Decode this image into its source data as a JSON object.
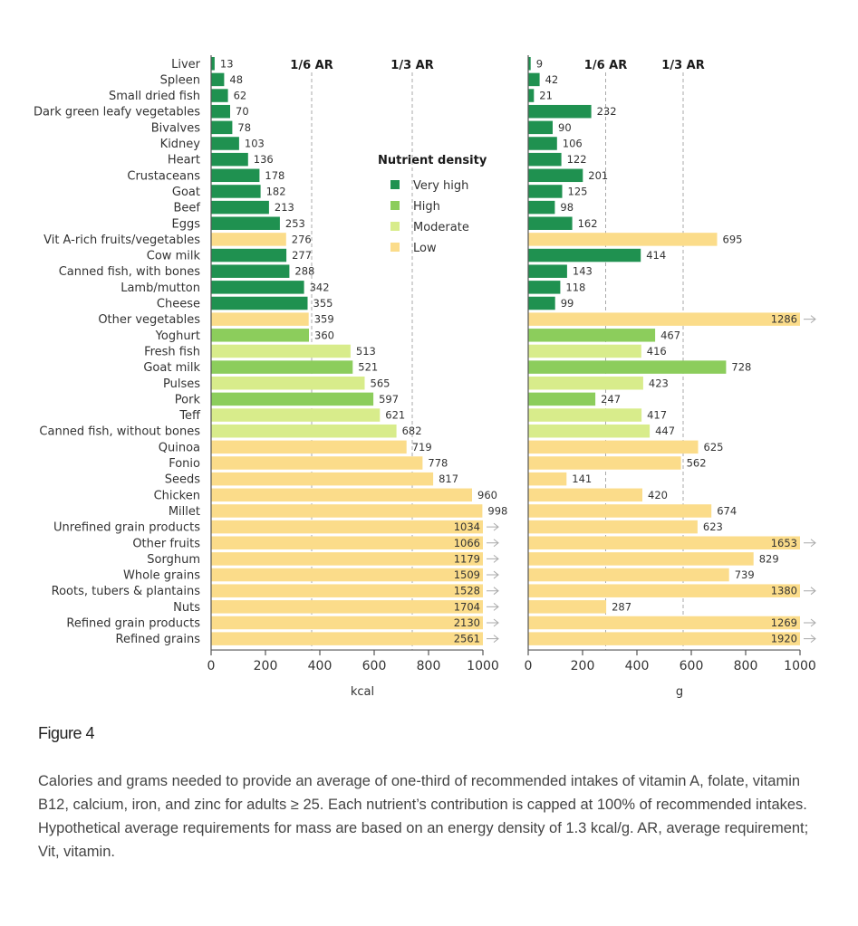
{
  "figure": {
    "title": "Figure 4",
    "caption": "Calories and grams needed to provide an average of one-third of recommended intakes of vitamin A, folate, vitamin B12, calcium, iron, and zinc for adults ≥ 25. Each nutrient’s contribution is capped at 100% of recommended intakes. Hypothetical average requirements for mass are based on an energy density of 1.3 kcal/g. AR, average requirement; Vit, vitamin."
  },
  "colors": {
    "Very high": "#1f9150",
    "High": "#8ccd5c",
    "Moderate": "#d8ec8b",
    "Low": "#fbdc8a",
    "axis": "#555555",
    "reference_line": "#aaaaaa",
    "overflow_arrow": "#aaaaaa"
  },
  "chart_data": {
    "type": "bar",
    "orientation": "horizontal",
    "categories": [
      "Liver",
      "Spleen",
      "Small dried fish",
      "Dark green leafy vegetables",
      "Bivalves",
      "Kidney",
      "Heart",
      "Crustaceans",
      "Goat",
      "Beef",
      "Eggs",
      "Vit A-rich fruits/vegetables",
      "Cow milk",
      "Canned fish, with bones",
      "Lamb/mutton",
      "Cheese",
      "Other vegetables",
      "Yoghurt",
      "Fresh fish",
      "Goat milk",
      "Pulses",
      "Pork",
      "Teff",
      "Canned fish, without bones",
      "Quinoa",
      "Fonio",
      "Seeds",
      "Chicken",
      "Millet",
      "Unrefined grain products",
      "Other fruits",
      "Sorghum",
      "Whole grains",
      "Roots, tubers & plantains",
      "Nuts",
      "Refined grain products",
      "Refined grains"
    ],
    "nutrient_density": [
      "Very high",
      "Very high",
      "Very high",
      "Very high",
      "Very high",
      "Very high",
      "Very high",
      "Very high",
      "Very high",
      "Very high",
      "Very high",
      "Low",
      "Very high",
      "Very high",
      "Very high",
      "Very high",
      "Low",
      "High",
      "Moderate",
      "High",
      "Moderate",
      "High",
      "Moderate",
      "Moderate",
      "Low",
      "Low",
      "Low",
      "Low",
      "Low",
      "Low",
      "Low",
      "Low",
      "Low",
      "Low",
      "Low",
      "Low",
      "Low"
    ],
    "legend": {
      "title": "Nutrient density",
      "placement": "center",
      "entries": [
        "Very high",
        "High",
        "Moderate",
        "Low"
      ]
    },
    "panels": [
      {
        "name": "kcal",
        "xlabel": "kcal",
        "xlim": [
          0,
          1000
        ],
        "ticks": [
          0,
          200,
          400,
          600,
          800,
          1000
        ],
        "values": [
          13,
          48,
          62,
          70,
          78,
          103,
          136,
          178,
          182,
          213,
          253,
          276,
          277,
          288,
          342,
          355,
          359,
          360,
          513,
          521,
          565,
          597,
          621,
          682,
          719,
          778,
          817,
          960,
          998,
          1034,
          1066,
          1179,
          1509,
          1528,
          1704,
          2130,
          2561
        ],
        "reference_lines": [
          {
            "label": "1/6 AR",
            "value": 370
          },
          {
            "label": "1/3 AR",
            "value": 740
          }
        ],
        "overflow_note": "values above 1000 truncated with arrow"
      },
      {
        "name": "g",
        "xlabel": "g",
        "xlim": [
          0,
          1000
        ],
        "ticks": [
          0,
          200,
          400,
          600,
          800,
          1000
        ],
        "values": [
          9,
          42,
          21,
          232,
          90,
          106,
          122,
          201,
          125,
          98,
          162,
          695,
          414,
          143,
          118,
          99,
          1286,
          467,
          416,
          728,
          423,
          247,
          417,
          447,
          625,
          562,
          141,
          420,
          674,
          623,
          1653,
          829,
          739,
          1380,
          287,
          1269,
          1920
        ],
        "reference_lines": [
          {
            "label": "1/6 AR",
            "value": 285
          },
          {
            "label": "1/3 AR",
            "value": 570
          }
        ],
        "overflow_note": "values above 1000 truncated with arrow"
      }
    ]
  }
}
